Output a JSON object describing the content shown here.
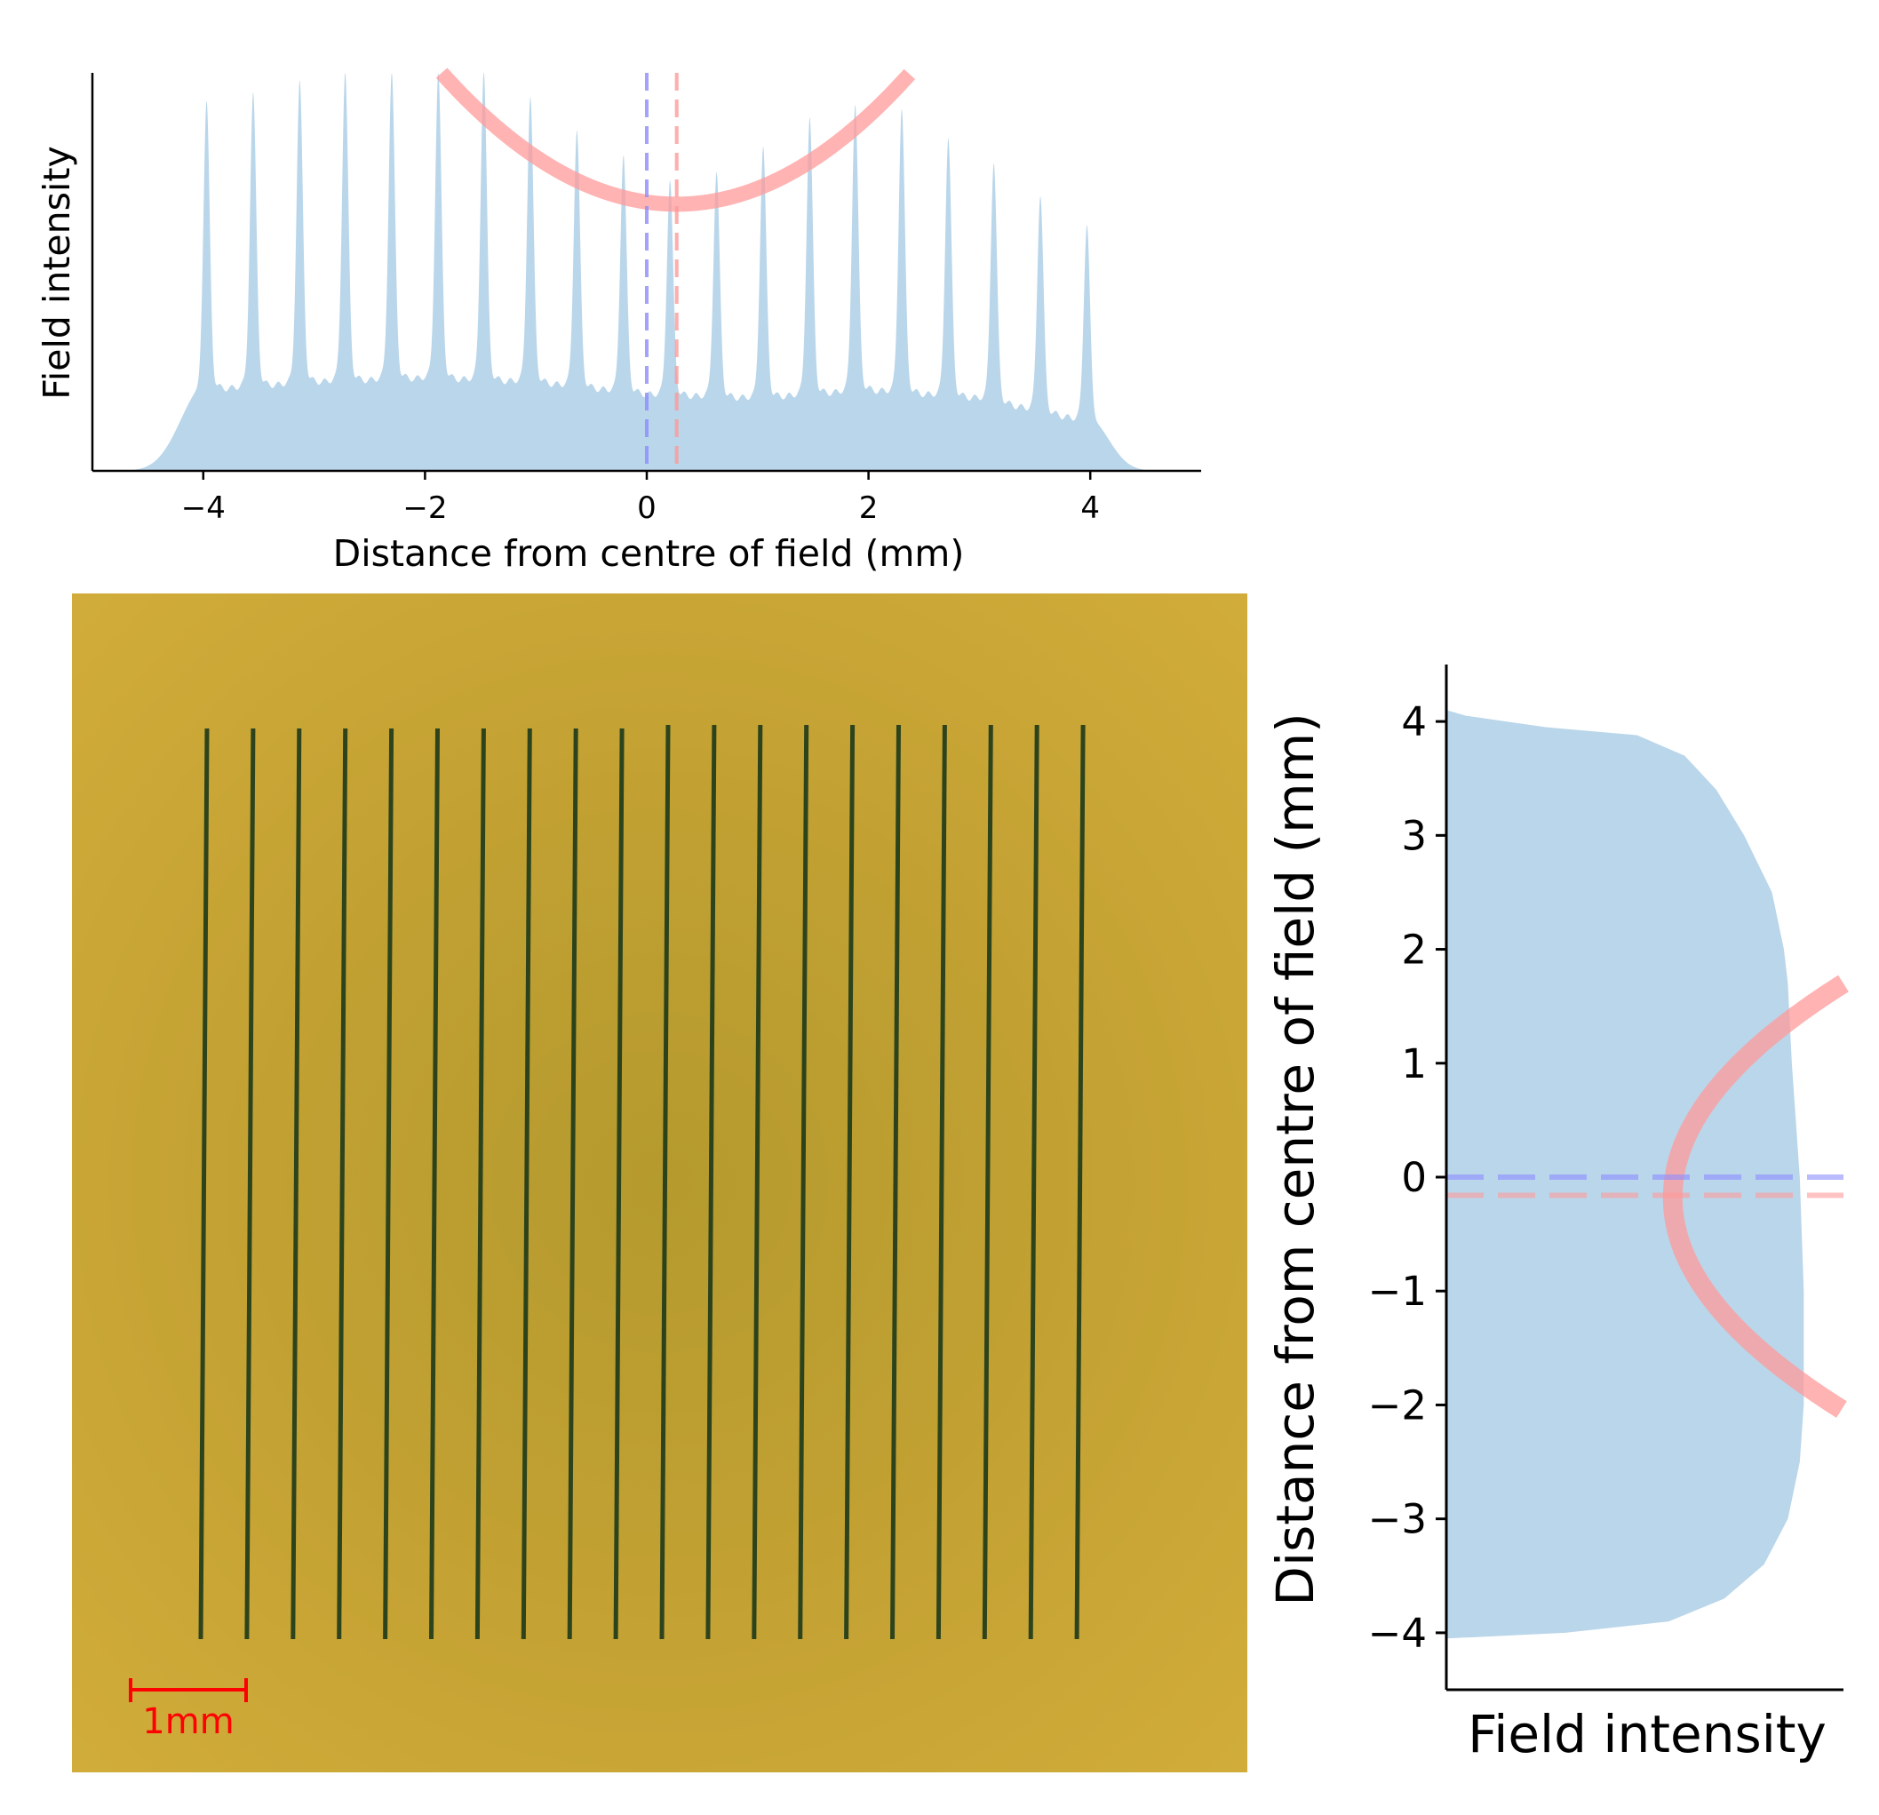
{
  "chart_data": [
    {
      "type": "area",
      "panel": "top",
      "xlabel": "Distance from centre of field (mm)",
      "ylabel": "Field intensity",
      "xlim": [
        -5,
        5
      ],
      "ylim": [
        0,
        1
      ],
      "xticks": [
        -4,
        -2,
        0,
        2,
        4
      ],
      "yticks": [],
      "grid": false,
      "fill_color": "#bad6ea",
      "peaks": {
        "positions": [
          -3.97,
          -3.55,
          -3.13,
          -2.72,
          -2.3,
          -1.88,
          -1.47,
          -1.05,
          -0.63,
          -0.21,
          0.21,
          0.63,
          1.05,
          1.47,
          1.88,
          2.3,
          2.72,
          3.13,
          3.55,
          3.97
        ],
        "heights": [
          0.89,
          0.91,
          0.94,
          0.96,
          0.96,
          0.96,
          0.96,
          0.9,
          0.82,
          0.76,
          0.7,
          0.72,
          0.78,
          0.85,
          0.88,
          0.87,
          0.8,
          0.74,
          0.66,
          0.59
        ]
      },
      "baseline_levels": {
        "x": [
          -4.0,
          -3.0,
          -2.0,
          -1.0,
          0.0,
          1.0,
          2.0,
          3.0,
          4.0
        ],
        "y": [
          0.2,
          0.22,
          0.23,
          0.22,
          0.19,
          0.18,
          0.2,
          0.18,
          0.12
        ]
      },
      "overlay_curve": {
        "type": "parabola",
        "color": "#ff9999",
        "vertex_x": 0.27,
        "vertex_y": 0.67,
        "ends": [
          [
            -1.85,
            1.0
          ],
          [
            2.38,
            1.0
          ]
        ]
      },
      "vlines": [
        {
          "x": 0.0,
          "color": "#8c8cff",
          "style": "dashed"
        },
        {
          "x": 0.27,
          "color": "#ff9999",
          "style": "dashed"
        }
      ]
    },
    {
      "type": "area",
      "panel": "right",
      "orientation": "horizontal",
      "xlabel": "Field intensity",
      "ylabel": "Distance from centre of field (mm)",
      "ylim": [
        -4.5,
        4.5
      ],
      "yticks": [
        -4,
        -3,
        -2,
        -1,
        0,
        1,
        2,
        3,
        4
      ],
      "xticks": [],
      "grid": false,
      "fill_color": "#bad6ea",
      "profile": {
        "y": [
          -4.05,
          -4.0,
          -3.9,
          -3.7,
          -3.4,
          -3.0,
          -2.5,
          -2.0,
          -1.0,
          0.0,
          1.0,
          1.7,
          2.0,
          2.5,
          3.0,
          3.4,
          3.7,
          3.88,
          3.95,
          4.05,
          4.1
        ],
        "x": [
          0.0,
          0.3,
          0.56,
          0.7,
          0.8,
          0.86,
          0.89,
          0.9,
          0.9,
          0.89,
          0.87,
          0.86,
          0.85,
          0.82,
          0.75,
          0.68,
          0.6,
          0.48,
          0.25,
          0.05,
          0.0
        ]
      },
      "overlay_curve": {
        "type": "parabola",
        "color": "#ff9999",
        "vertex_y": -0.18,
        "vertex_x": 0.57,
        "ends": [
          [
            1.0,
            1.7
          ],
          [
            1.0,
            -2.05
          ]
        ]
      },
      "hlines": [
        {
          "y": 0.0,
          "color": "#8c8cff",
          "style": "dashed"
        },
        {
          "y": -0.16,
          "color": "#ff9999",
          "style": "dashed"
        }
      ]
    }
  ],
  "photo": {
    "background_color": "#c8a335",
    "line_color": "#1f3b1a",
    "line_count": 20,
    "scale_bar": {
      "label": "1mm",
      "color": "#ff0000"
    }
  }
}
